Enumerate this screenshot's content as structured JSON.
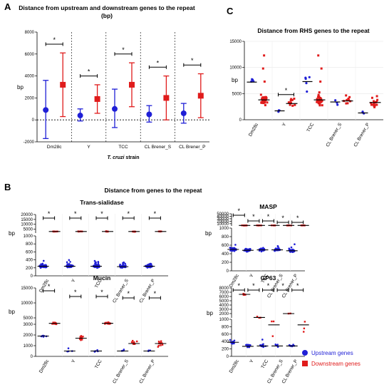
{
  "panels": {
    "A": {
      "letter": "A",
      "title_line1": "Distance from upstream and downstream genes to the repeat",
      "title_line2": "(bp)"
    },
    "B": {
      "letter": "B",
      "title": "Distance from genes to the repeat"
    },
    "C": {
      "letter": "C"
    }
  },
  "legend": {
    "upstream": "Upstream genes",
    "downstream": "Downstream genes"
  },
  "colors": {
    "upstream": "#1f1fd6",
    "downstream": "#e01b1b"
  },
  "chart_data": [
    {
      "id": "A",
      "type": "scatter",
      "title": "",
      "ylabel": "bp",
      "xlabel_italic": "T. cruzi",
      "xlabel_rest": " strain",
      "ylim": [
        -2000,
        8000
      ],
      "yticks": [
        -2000,
        0,
        2000,
        4000,
        6000,
        8000
      ],
      "categories": [
        "Dm28c",
        "Y",
        "TCC",
        "CL Brener_S",
        "CL Brener_P"
      ],
      "significance": "*",
      "series": [
        {
          "name": "Upstream genes",
          "mean": [
            900,
            400,
            1000,
            500,
            600
          ],
          "low": [
            -1700,
            -100,
            -700,
            -200,
            -300
          ],
          "high": [
            3600,
            1000,
            2800,
            1300,
            1500
          ]
        },
        {
          "name": "Downstream genes",
          "mean": [
            3200,
            1900,
            3200,
            2000,
            2200
          ],
          "low": [
            300,
            600,
            1200,
            0,
            200
          ],
          "high": [
            6100,
            3200,
            5200,
            4000,
            4200
          ]
        }
      ]
    },
    {
      "id": "C",
      "type": "scatter",
      "title": "Distance from RHS genes to the repeat",
      "ylabel": "bp",
      "ylim": [
        0,
        15000
      ],
      "yticks": [
        0,
        5000,
        10000,
        15000
      ],
      "categories": [
        "Dm28c",
        "Y",
        "TCC",
        "CL Brener_S",
        "CL Brener_P"
      ],
      "significance": "*",
      "series": [
        {
          "name": "Upstream genes",
          "median": [
            7200,
            1700,
            7300,
            3400,
            1300
          ]
        },
        {
          "name": "Downstream genes",
          "median": [
            3800,
            3100,
            3800,
            3600,
            3300
          ]
        }
      ]
    },
    {
      "id": "B1",
      "type": "scatter",
      "title": "Trans-sialidase",
      "ylabel": "bp",
      "yticks": [
        "0",
        "200",
        "400",
        "600",
        "800",
        "1000",
        "5000",
        "10000",
        "15000",
        "20000"
      ],
      "categories": [
        "Dm28c",
        "Y",
        "TCC",
        "CL Brener_S",
        "CL Brener_P"
      ],
      "significance": "*",
      "series": [
        {
          "name": "Upstream genes",
          "median": [
            240,
            240,
            240,
            230,
            240
          ]
        },
        {
          "name": "Downstream genes",
          "median": [
            2600,
            2600,
            2600,
            2600,
            2600
          ]
        }
      ]
    },
    {
      "id": "B2",
      "type": "scatter",
      "title": "MASP",
      "ylabel": "bp",
      "yticks": [
        "0",
        "200",
        "400",
        "600",
        "800",
        "1000",
        "10000",
        "20000",
        "30000",
        "40000",
        "50000"
      ],
      "categories": [
        "Dm28c",
        "Y",
        "TCC",
        "CL Brener_S",
        "CL Brener_P"
      ],
      "significance": "*",
      "series": [
        {
          "name": "Upstream genes",
          "median": [
            500,
            480,
            490,
            490,
            470
          ]
        },
        {
          "name": "Downstream genes",
          "median": [
            3000,
            3000,
            3000,
            3000,
            3000
          ]
        }
      ]
    },
    {
      "id": "B3",
      "type": "scatter",
      "title": "Mucin",
      "ylabel": "bp",
      "yticks": [
        "0",
        "1000",
        "2000",
        "3000",
        "5000",
        "10000",
        "15000"
      ],
      "categories": [
        "Dm28c",
        "Y",
        "TCC",
        "CL Brener_S",
        "CL Brener_P"
      ],
      "significance": "*",
      "series": [
        {
          "name": "Upstream genes",
          "median": [
            1900,
            500,
            500,
            500,
            500
          ]
        },
        {
          "name": "Downstream genes",
          "median": [
            3300,
            1700,
            3300,
            1200,
            1200
          ]
        }
      ]
    },
    {
      "id": "B4",
      "type": "scatter",
      "title": "GP63",
      "ylabel": "bp",
      "yticks": [
        "0",
        "200",
        "400",
        "600",
        "800",
        "1000",
        "2000",
        "3000",
        "4000",
        "5000",
        "6000",
        "7000",
        "8000"
      ],
      "categories": [
        "Dm28c",
        "Y",
        "TCC",
        "CL Brener_S",
        "CL Brener_P"
      ],
      "significance": "*",
      "series": [
        {
          "name": "Upstream genes",
          "median": [
            380,
            270,
            280,
            280,
            280
          ]
        },
        {
          "name": "Downstream genes",
          "median": [
            6500,
            1100,
            850,
            2000,
            850
          ]
        }
      ]
    }
  ]
}
